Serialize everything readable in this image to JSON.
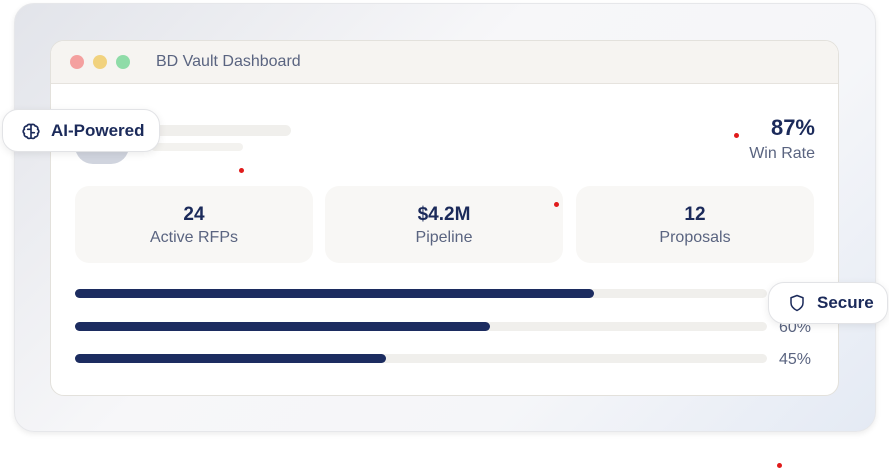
{
  "window": {
    "title": "BD Vault Dashboard",
    "dots": [
      "#f4a09f",
      "#f1d27e",
      "#8fdca8"
    ]
  },
  "win_rate": {
    "value": "87%",
    "label": "Win Rate"
  },
  "stats": [
    {
      "value": "24",
      "label": "Active RFPs"
    },
    {
      "value": "$4.2M",
      "label": "Pipeline"
    },
    {
      "value": "12",
      "label": "Proposals"
    }
  ],
  "progress": [
    {
      "fill": 75,
      "label": ""
    },
    {
      "fill": 60,
      "label": "60%"
    },
    {
      "fill": 45,
      "label": "45%"
    }
  ],
  "badges": {
    "ai": {
      "label": "AI-Powered",
      "icon": "brain-icon"
    },
    "secure": {
      "label": "Secure",
      "icon": "shield-icon"
    }
  },
  "colors": {
    "accent": "#1c2c60",
    "track": "#f0efec"
  }
}
